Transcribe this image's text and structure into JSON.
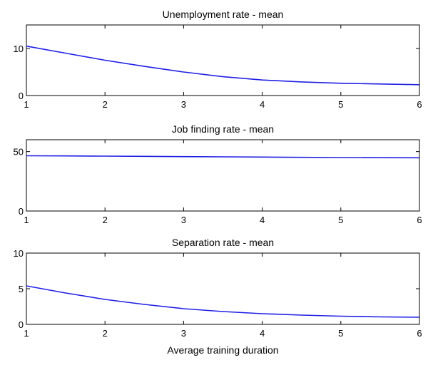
{
  "chart_data": [
    {
      "type": "line",
      "title": "Unemployment rate - mean",
      "xlabel": "",
      "ylabel": "",
      "xlim": [
        1,
        6
      ],
      "ylim": [
        0,
        15
      ],
      "xticks": [
        1,
        2,
        3,
        4,
        5,
        6
      ],
      "yticks": [
        0,
        10
      ],
      "grid": false,
      "series": [
        {
          "color": "#1f1fe6",
          "x": [
            1,
            1.5,
            2,
            2.5,
            3,
            3.5,
            4,
            4.5,
            5,
            5.5,
            6
          ],
          "y": [
            10.5,
            9.0,
            7.5,
            6.2,
            5.0,
            4.0,
            3.3,
            2.9,
            2.6,
            2.45,
            2.3
          ]
        }
      ]
    },
    {
      "type": "line",
      "title": "Job finding rate - mean",
      "xlabel": "",
      "ylabel": "",
      "xlim": [
        1,
        6
      ],
      "ylim": [
        0,
        60
      ],
      "xticks": [
        1,
        2,
        3,
        4,
        5,
        6
      ],
      "yticks": [
        0,
        50
      ],
      "grid": false,
      "series": [
        {
          "color": "#1f1fe6",
          "x": [
            1,
            1.5,
            2,
            2.5,
            3,
            3.5,
            4,
            4.5,
            5,
            5.5,
            6
          ],
          "y": [
            46.5,
            46.4,
            46.2,
            46.0,
            45.8,
            45.6,
            45.4,
            45.2,
            45.0,
            44.9,
            44.8
          ]
        }
      ]
    },
    {
      "type": "line",
      "title": "Separation rate - mean",
      "xlabel": "Average training duration",
      "ylabel": "",
      "xlim": [
        1,
        6
      ],
      "ylim": [
        0,
        10
      ],
      "xticks": [
        1,
        2,
        3,
        4,
        5,
        6
      ],
      "yticks": [
        0,
        5,
        10
      ],
      "grid": false,
      "series": [
        {
          "color": "#1f1fe6",
          "x": [
            1,
            1.5,
            2,
            2.5,
            3,
            3.5,
            4,
            4.5,
            5,
            5.5,
            6
          ],
          "y": [
            5.4,
            4.4,
            3.5,
            2.8,
            2.2,
            1.8,
            1.5,
            1.3,
            1.15,
            1.05,
            1.0
          ]
        }
      ]
    }
  ]
}
